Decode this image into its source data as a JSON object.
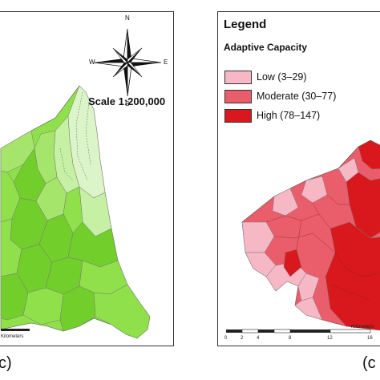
{
  "left_panel": {
    "scale_text": "Scale  1:200,000",
    "compass": {
      "north": "N",
      "south": "S",
      "east": "E",
      "west": "W"
    },
    "scalebar_unit": "Kilometers",
    "fill_colors": [
      "#8fe04a",
      "#72cf2b",
      "#a6e56b",
      "#c6f0a4",
      "#dcf5c8"
    ]
  },
  "right_panel": {
    "legend_title": "Legend",
    "legend_subtitle": "Adaptive Capacity",
    "legend_items": [
      {
        "label": "Low (3–29)",
        "color": "#f7b8c6"
      },
      {
        "label": "Moderate (30–77)",
        "color": "#ea5d6a"
      },
      {
        "label": "High (78–147)",
        "color": "#d8181c"
      }
    ],
    "scalebar_ticks": [
      "0",
      "2",
      "4",
      "8",
      "12",
      "16"
    ],
    "scalebar_unit": "Kilometers"
  },
  "labels": {
    "left_panel_label": "c)",
    "right_panel_label": "(c"
  }
}
